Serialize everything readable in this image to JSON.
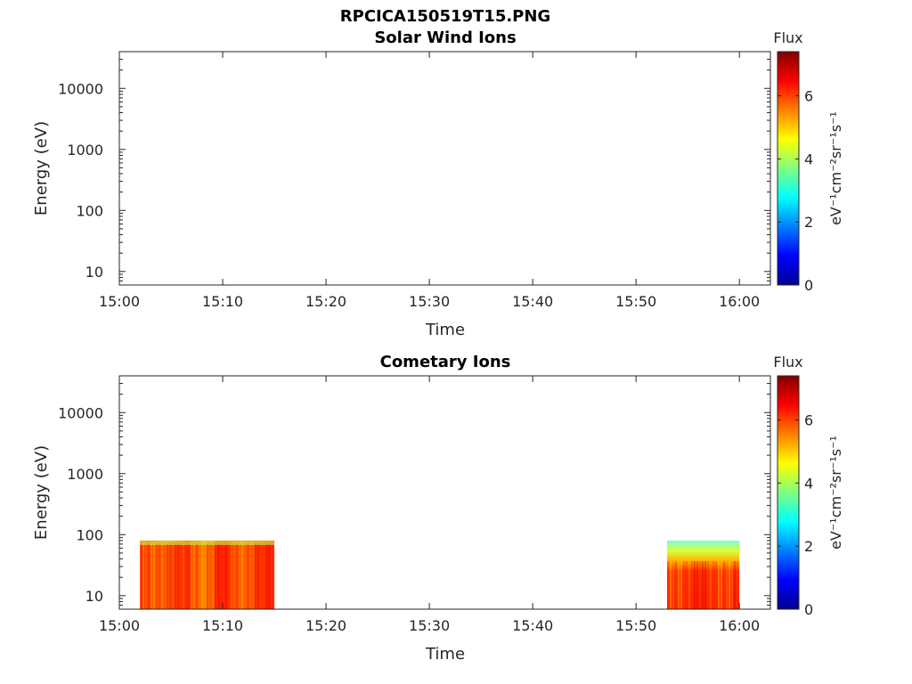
{
  "figure_title": "RPCICA150519T15.PNG",
  "chart_data": [
    {
      "type": "heatmap",
      "title": "Solar Wind Ions",
      "xlabel": "Time",
      "ylabel": "Energy (eV)",
      "x_tick_labels": [
        "15:00",
        "15:10",
        "15:20",
        "15:30",
        "15:40",
        "15:50",
        "16:00"
      ],
      "y_tick_labels": [
        "10",
        "100",
        "1000",
        "10000"
      ],
      "y_scale": "log",
      "ylim": [
        6,
        40000
      ],
      "xlim": [
        "15:00",
        "16:03"
      ],
      "colorbar": {
        "label": "Flux",
        "units": "eV⁻¹cm⁻²sr⁻¹s⁻¹",
        "ticks": [
          "0",
          "2",
          "4",
          "6"
        ],
        "range": [
          0,
          7.4
        ],
        "colormap": "jet"
      },
      "blocks": []
    },
    {
      "type": "heatmap",
      "title": "Cometary Ions",
      "xlabel": "Time",
      "ylabel": "Energy (eV)",
      "x_tick_labels": [
        "15:00",
        "15:10",
        "15:20",
        "15:30",
        "15:40",
        "15:50",
        "16:00"
      ],
      "y_tick_labels": [
        "10",
        "100",
        "1000",
        "10000"
      ],
      "y_scale": "log",
      "ylim": [
        6,
        40000
      ],
      "xlim": [
        "15:00",
        "16:03"
      ],
      "colorbar": {
        "label": "Flux",
        "units": "eV⁻¹cm⁻²sr⁻¹s⁻¹",
        "ticks": [
          "0",
          "2",
          "4",
          "6"
        ],
        "range": [
          0,
          7.4
        ],
        "colormap": "jet"
      },
      "blocks": [
        {
          "start": "15:02",
          "end": "15:15",
          "energy_min": 6,
          "energy_max": 80,
          "typical_flux": 6.0
        },
        {
          "start": "15:53",
          "end": "16:00",
          "energy_min": 6,
          "energy_max": 80,
          "typical_flux": 5.2
        }
      ]
    }
  ]
}
